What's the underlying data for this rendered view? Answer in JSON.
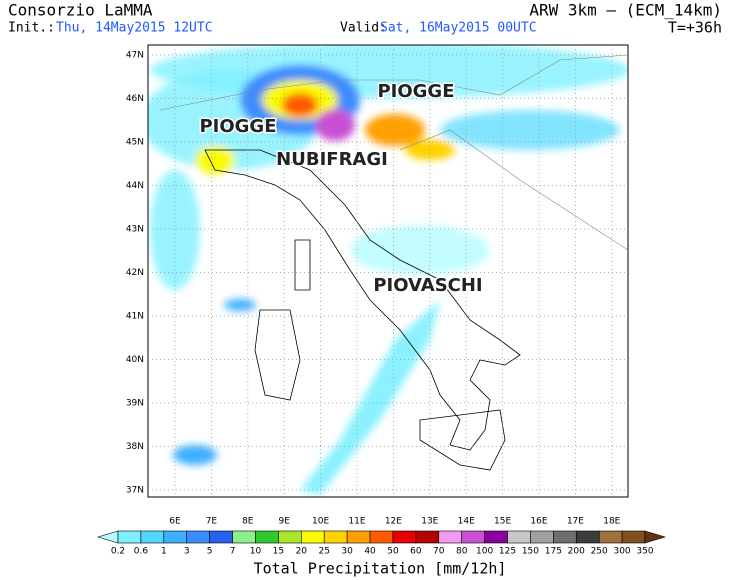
{
  "header": {
    "title": "Consorzio LaMMA",
    "init_label": "Init.:",
    "init_time": "Thu, 14May2015 12UTC",
    "valid_label": "Valid:",
    "valid_time": "Sat, 16May2015 00UTC",
    "model": "ARW 3km – (ECM_14km)",
    "lead_time": "T=+36h"
  },
  "map": {
    "lat_labels": [
      "47N",
      "46N",
      "45N",
      "44N",
      "43N",
      "42N",
      "41N",
      "40N",
      "39N",
      "38N",
      "37N"
    ],
    "lon_labels": [
      "6E",
      "7E",
      "8E",
      "9E",
      "10E",
      "11E",
      "12E",
      "13E",
      "14E",
      "15E",
      "16E",
      "17E",
      "18E"
    ],
    "annotations": [
      "PIOGGE",
      "PIOGGE",
      "NUBIFRAGI",
      "PIOVASCHI"
    ]
  },
  "colorbar": {
    "levels": [
      0.2,
      0.6,
      1,
      3,
      5,
      7,
      10,
      15,
      20,
      25,
      30,
      40,
      50,
      60,
      70,
      80,
      100,
      125,
      150,
      175,
      200,
      250,
      300,
      350
    ],
    "colors": [
      "#b4fcff",
      "#7ef0ff",
      "#50d8ff",
      "#3cb0ff",
      "#3c8cff",
      "#2860f0",
      "#8cf08c",
      "#32c832",
      "#a8e628",
      "#fafa00",
      "#ffd200",
      "#ffa000",
      "#ff5a00",
      "#e60000",
      "#b40000",
      "#f09af0",
      "#c850d2",
      "#8c00a0",
      "#c8c8c8",
      "#a0a0a0",
      "#6e6e6e",
      "#3c3c3c",
      "#a0703c",
      "#80501e",
      "#643214"
    ],
    "label": "Total Precipitation [mm/12h]"
  }
}
